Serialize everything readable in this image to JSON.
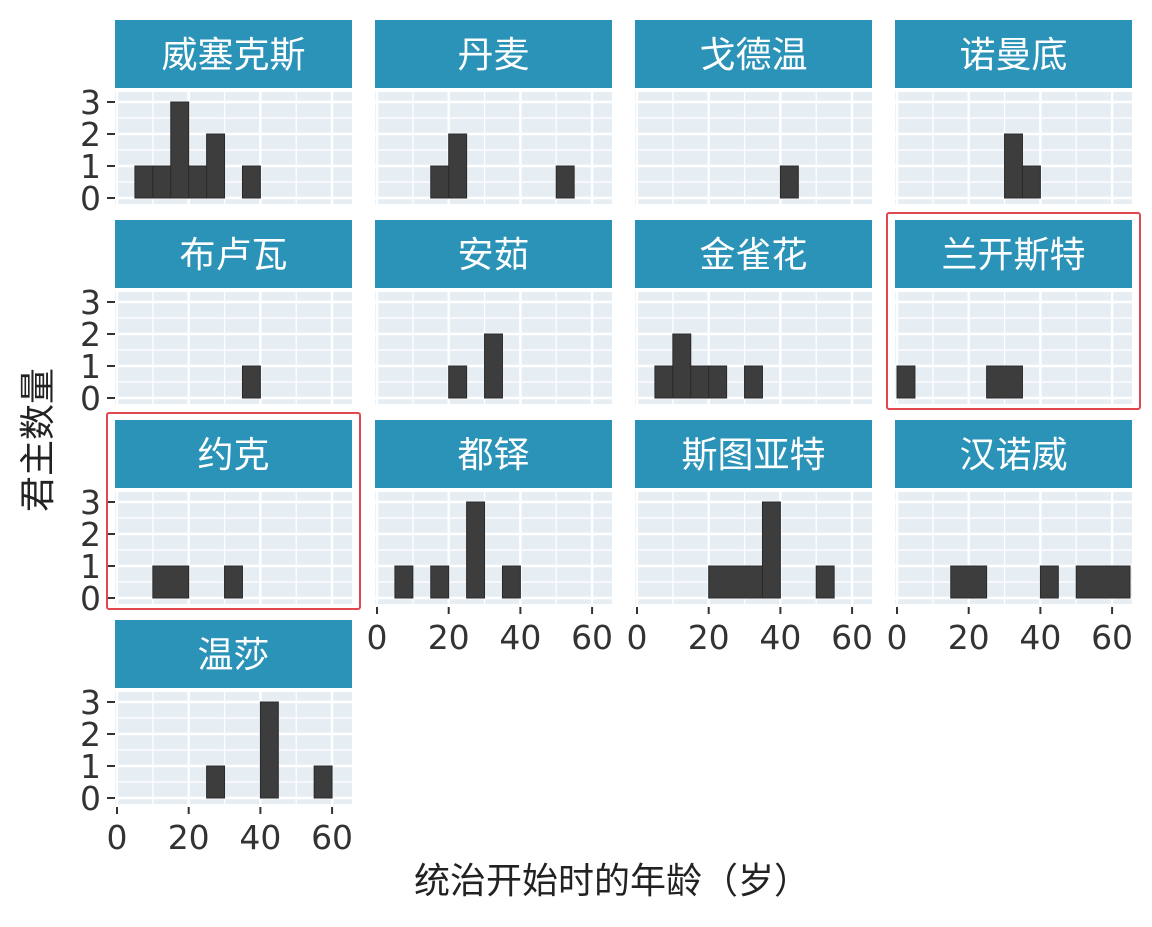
{
  "chart_data": {
    "type": "bar",
    "xlabel": "统治开始时的年龄（岁）",
    "ylabel": "君主数量",
    "xlim": [
      0,
      65
    ],
    "ylim": [
      0,
      3
    ],
    "x_ticks": [
      "0",
      "20",
      "40",
      "60"
    ],
    "y_ticks": [
      "0",
      "1",
      "2",
      "3"
    ],
    "bin_width": 5,
    "grid": true,
    "colors": {
      "strip": "#2b93b8",
      "panel": "#e6eef4",
      "bar": "#3d3d3d",
      "highlight": "#e0484d"
    },
    "panels": [
      {
        "name": "威塞克斯",
        "bins": [
          [
            5,
            10,
            1
          ],
          [
            10,
            15,
            1
          ],
          [
            15,
            20,
            3
          ],
          [
            20,
            25,
            1
          ],
          [
            25,
            30,
            2
          ],
          [
            35,
            40,
            1
          ]
        ]
      },
      {
        "name": "丹麦",
        "bins": [
          [
            15,
            20,
            1
          ],
          [
            20,
            25,
            2
          ],
          [
            50,
            55,
            1
          ]
        ]
      },
      {
        "name": "戈德温",
        "bins": [
          [
            40,
            45,
            1
          ]
        ]
      },
      {
        "name": "诺曼底",
        "bins": [
          [
            30,
            35,
            2
          ],
          [
            35,
            40,
            1
          ]
        ]
      },
      {
        "name": "布卢瓦",
        "bins": [
          [
            35,
            40,
            1
          ]
        ]
      },
      {
        "name": "安茹",
        "bins": [
          [
            20,
            25,
            1
          ],
          [
            30,
            35,
            2
          ]
        ]
      },
      {
        "name": "金雀花",
        "bins": [
          [
            5,
            10,
            1
          ],
          [
            10,
            15,
            2
          ],
          [
            15,
            20,
            1
          ],
          [
            20,
            25,
            1
          ],
          [
            30,
            35,
            1
          ]
        ]
      },
      {
        "name": "兰开斯特",
        "bins": [
          [
            0,
            5,
            1
          ],
          [
            25,
            35,
            1
          ]
        ],
        "highlighted": true
      },
      {
        "name": "约克",
        "bins": [
          [
            10,
            20,
            1
          ],
          [
            30,
            35,
            1
          ]
        ],
        "highlighted": true
      },
      {
        "name": "都铎",
        "bins": [
          [
            5,
            10,
            1
          ],
          [
            15,
            20,
            1
          ],
          [
            25,
            30,
            3
          ],
          [
            35,
            40,
            1
          ]
        ]
      },
      {
        "name": "斯图亚特",
        "bins": [
          [
            20,
            35,
            1
          ],
          [
            35,
            40,
            3
          ],
          [
            50,
            55,
            1
          ]
        ]
      },
      {
        "name": "汉诺威",
        "bins": [
          [
            15,
            25,
            1
          ],
          [
            40,
            45,
            1
          ],
          [
            50,
            65,
            1
          ]
        ]
      },
      {
        "name": "温莎",
        "bins": [
          [
            25,
            30,
            1
          ],
          [
            40,
            45,
            3
          ],
          [
            55,
            60,
            1
          ]
        ]
      }
    ]
  }
}
